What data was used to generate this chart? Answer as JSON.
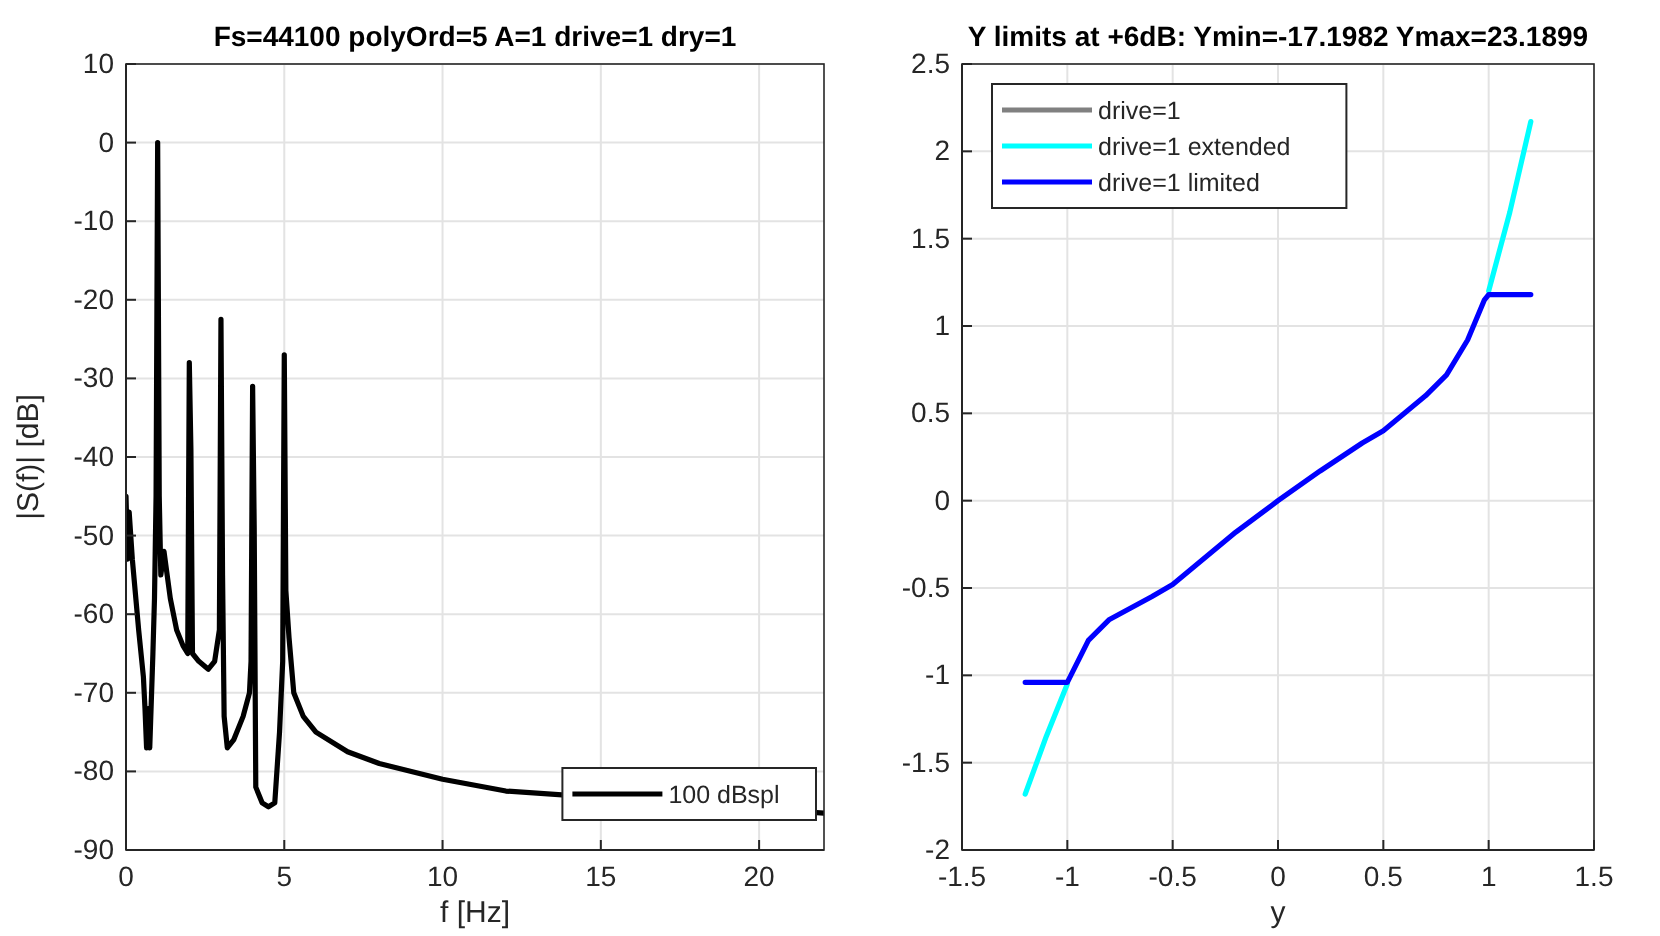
{
  "chart_data": [
    {
      "type": "line",
      "title": "Fs=44100 polyOrd=5 A=1 drive=1 dry=1",
      "xlabel": "f [Hz]",
      "ylabel": "|S(f)| [dB]",
      "xlim": [
        0,
        22.05
      ],
      "xticks": [
        0,
        5,
        10,
        15,
        20
      ],
      "ylim": [
        -90,
        10
      ],
      "yticks": [
        -90,
        -80,
        -70,
        -60,
        -50,
        -40,
        -30,
        -20,
        -10,
        0,
        10
      ],
      "grid": true,
      "legend": "bottom right",
      "x": [
        0,
        0.05,
        0.1,
        0.2,
        0.4,
        0.55,
        0.6,
        0.65,
        0.7,
        0.75,
        0.85,
        0.9,
        0.95,
        1.0,
        1.05,
        1.1,
        1.2,
        1.4,
        1.6,
        1.8,
        1.95,
        2.0,
        2.05,
        2.1,
        2.3,
        2.6,
        2.8,
        2.95,
        3.0,
        3.05,
        3.1,
        3.2,
        3.4,
        3.7,
        3.9,
        3.95,
        4.0,
        4.05,
        4.1,
        4.3,
        4.5,
        4.7,
        4.85,
        4.95,
        5.0,
        5.05,
        5.15,
        5.3,
        5.6,
        6,
        7,
        8,
        10,
        12,
        22.05
      ],
      "series": [
        {
          "name": "100 dBspl",
          "color": "#000000",
          "values": [
            -45,
            -53,
            -47,
            -53,
            -62,
            -68,
            -72,
            -77,
            -72,
            -77,
            -65,
            -58,
            -45,
            0,
            -45,
            -55,
            -52,
            -58,
            -62,
            -64,
            -65,
            -28,
            -39,
            -65,
            -66,
            -67,
            -66,
            -62,
            -22.5,
            -55,
            -73,
            -77,
            -76,
            -73,
            -70,
            -66,
            -31,
            -49,
            -82,
            -84,
            -84.5,
            -84,
            -75,
            -66,
            -27,
            -57,
            -63,
            -70,
            -73,
            -75,
            -77.5,
            -79,
            -81,
            -82.5,
            -85.3
          ]
        }
      ]
    },
    {
      "type": "line",
      "title": "Y limits at +6dB: Ymin=-17.1982 Ymax=23.1899",
      "xlabel": "y",
      "xlim": [
        -1.5,
        1.5
      ],
      "xticks": [
        -1.5,
        -1,
        -0.5,
        0,
        0.5,
        1,
        1.5
      ],
      "ylim": [
        -2,
        2.5
      ],
      "yticks": [
        -2,
        -1.5,
        -1,
        -0.5,
        0,
        0.5,
        1,
        1.5,
        2,
        2.5
      ],
      "grid": true,
      "legend": "top left",
      "series": [
        {
          "name": "drive=1",
          "color": "#808080"
        },
        {
          "name": "drive=1 extended",
          "color": "#00ffff",
          "x": [
            -1.2,
            -1.1,
            -1.0,
            -0.9,
            0.9,
            1.0,
            1.1,
            1.2
          ],
          "values": [
            -1.68,
            -1.35,
            -1.05,
            null,
            null,
            1.2,
            1.65,
            2.17
          ]
        },
        {
          "name": "drive=1 limited",
          "color": "#0000ff",
          "x": [
            -1.2,
            -1.0,
            -0.9,
            -0.8,
            -0.6,
            -0.5,
            -0.4,
            -0.2,
            0,
            0.2,
            0.4,
            0.5,
            0.6,
            0.7,
            0.8,
            0.9,
            0.98,
            1.0,
            1.2
          ],
          "values": [
            -1.04,
            -1.04,
            -0.8,
            -0.68,
            -0.55,
            -0.48,
            -0.38,
            -0.18,
            0,
            0.17,
            0.33,
            0.4,
            0.5,
            0.6,
            0.72,
            0.92,
            1.15,
            1.18,
            1.18
          ]
        }
      ]
    }
  ]
}
